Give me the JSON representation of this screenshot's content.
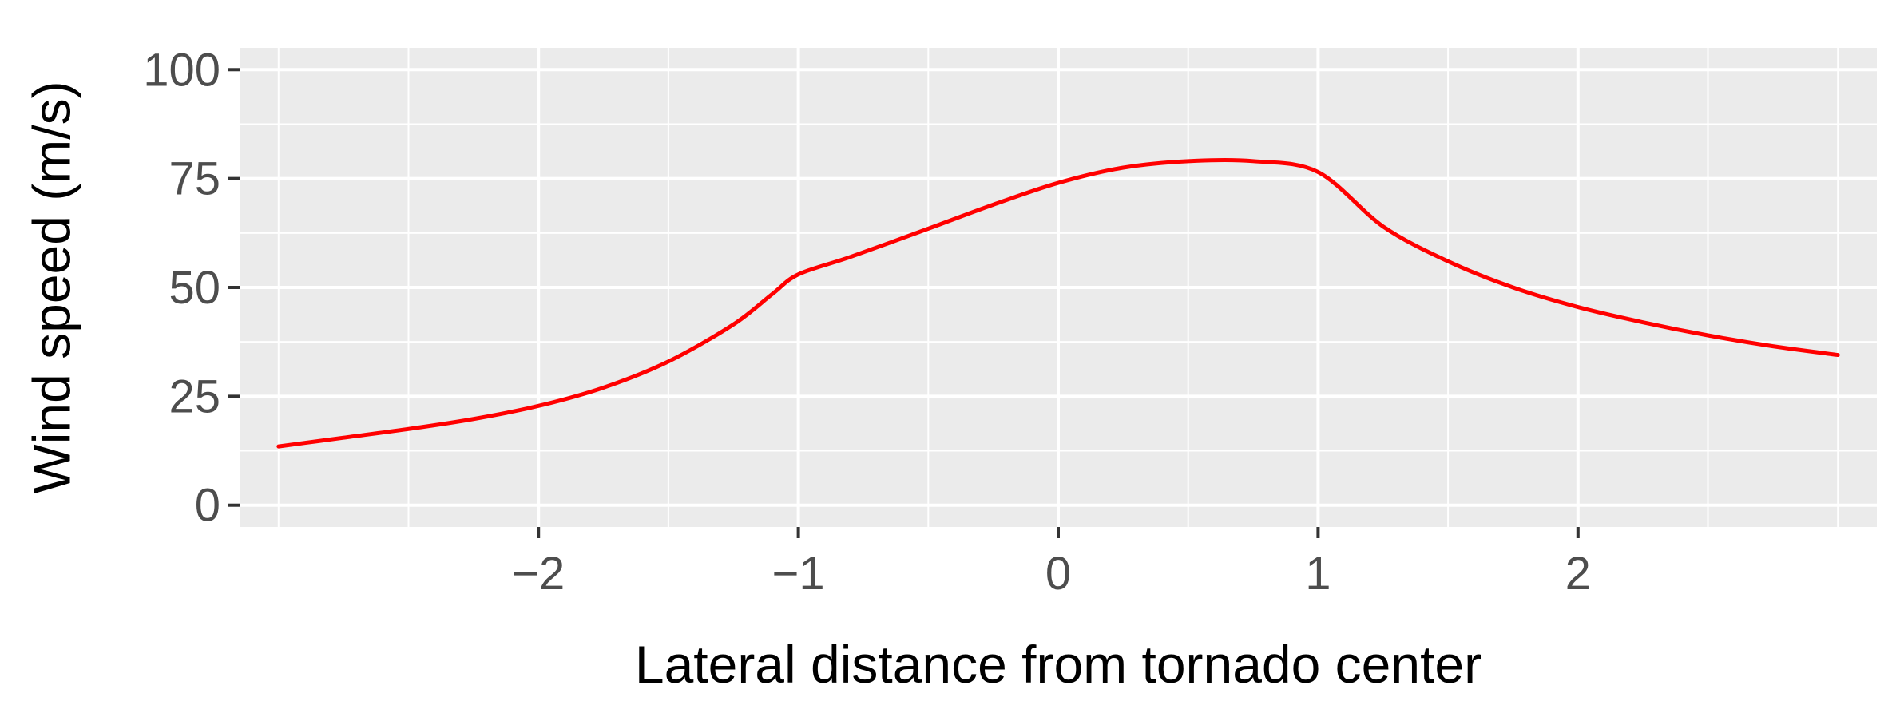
{
  "chart_data": {
    "type": "line",
    "title": "",
    "xlabel": "Lateral distance from tornado center",
    "ylabel": "Wind speed (m/s)",
    "xlim": [
      -3.0,
      3.0
    ],
    "ylim": [
      0,
      100
    ],
    "x_ticks": [
      -2,
      -1,
      0,
      1,
      2
    ],
    "x_tick_labels": [
      "−2",
      "−1",
      "0",
      "1",
      "2"
    ],
    "y_ticks": [
      0,
      25,
      50,
      75,
      100
    ],
    "y_tick_labels": [
      "0",
      "25",
      "50",
      "75",
      "100"
    ],
    "grid": true,
    "panel_background": "#EBEBEB",
    "series": [
      {
        "color": "#FF0000",
        "x": [
          -3.0,
          -2.75,
          -2.5,
          -2.25,
          -2.0,
          -1.75,
          -1.5,
          -1.25,
          -1.1,
          -1.0,
          -0.8,
          -0.5,
          -0.25,
          0.0,
          0.25,
          0.5,
          0.75,
          1.0,
          1.25,
          1.5,
          1.75,
          2.0,
          2.25,
          2.5,
          2.75,
          3.0
        ],
        "y": [
          13.5,
          15.5,
          17.5,
          19.8,
          22.8,
          27.0,
          33.0,
          41.5,
          48.5,
          53.0,
          57.0,
          63.5,
          69.0,
          74.0,
          77.5,
          79.0,
          79.0,
          76.5,
          64.0,
          56.0,
          50.0,
          45.5,
          42.0,
          39.0,
          36.5,
          34.5
        ]
      }
    ]
  }
}
